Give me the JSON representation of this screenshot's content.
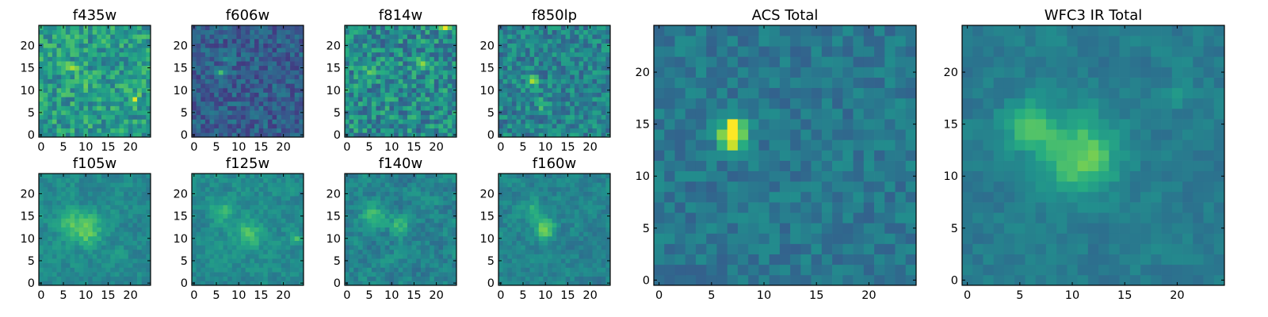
{
  "figure": {
    "background": "#ffffff",
    "colormap": "viridis",
    "colormap_stops": [
      "#440154",
      "#472c7a",
      "#3b518b",
      "#2c718e",
      "#21908d",
      "#27ad81",
      "#5cc863",
      "#aadc32",
      "#fde725"
    ]
  },
  "chart_data": [
    {
      "type": "heatmap",
      "title": "f435w",
      "grid_size": 25,
      "xlim": [
        -0.5,
        24.5
      ],
      "ylim": [
        -0.5,
        24.5
      ],
      "x_ticks": [
        0,
        5,
        10,
        15,
        20
      ],
      "y_ticks": [
        0,
        5,
        10,
        15,
        20
      ],
      "value_range": [
        0,
        1
      ],
      "base_level": 0.55,
      "noise": 0.18,
      "smooth": 0,
      "blobs": [
        [
          10,
          12,
          1,
          0.25
        ],
        [
          7,
          15,
          1,
          0.3
        ],
        [
          21,
          8,
          1,
          0.25
        ]
      ],
      "seed": 11
    },
    {
      "type": "heatmap",
      "title": "f606w",
      "grid_size": 25,
      "xlim": [
        -0.5,
        24.5
      ],
      "ylim": [
        -0.5,
        24.5
      ],
      "x_ticks": [
        0,
        5,
        10,
        15,
        20
      ],
      "y_ticks": [
        0,
        5,
        10,
        15,
        20
      ],
      "value_range": [
        0,
        1
      ],
      "base_level": 0.3,
      "noise": 0.13,
      "smooth": 0,
      "blobs": [
        [
          6,
          14,
          1,
          0.45
        ],
        [
          8,
          17,
          1,
          0.25
        ]
      ],
      "seed": 23
    },
    {
      "type": "heatmap",
      "title": "f814w",
      "grid_size": 25,
      "xlim": [
        -0.5,
        24.5
      ],
      "ylim": [
        -0.5,
        24.5
      ],
      "x_ticks": [
        0,
        5,
        10,
        15,
        20
      ],
      "y_ticks": [
        0,
        5,
        10,
        15,
        20
      ],
      "value_range": [
        0,
        1
      ],
      "base_level": 0.48,
      "noise": 0.2,
      "smooth": 0,
      "blobs": [
        [
          5,
          14,
          1,
          0.35
        ],
        [
          17,
          16,
          1,
          0.3
        ],
        [
          22,
          24,
          1,
          0.3
        ]
      ],
      "seed": 37
    },
    {
      "type": "heatmap",
      "title": "f850lp",
      "grid_size": 25,
      "xlim": [
        -0.5,
        24.5
      ],
      "ylim": [
        -0.5,
        24.5
      ],
      "x_ticks": [
        0,
        5,
        10,
        15,
        20
      ],
      "y_ticks": [
        0,
        5,
        10,
        15,
        20
      ],
      "value_range": [
        0,
        1
      ],
      "base_level": 0.45,
      "noise": 0.16,
      "smooth": 0,
      "blobs": [
        [
          7,
          12,
          1,
          0.4
        ],
        [
          9,
          7,
          1,
          0.25
        ]
      ],
      "seed": 41
    },
    {
      "type": "heatmap",
      "title": "f105w",
      "grid_size": 25,
      "xlim": [
        -0.5,
        24.5
      ],
      "ylim": [
        -0.5,
        24.5
      ],
      "x_ticks": [
        0,
        5,
        10,
        15,
        20
      ],
      "y_ticks": [
        0,
        5,
        10,
        15,
        20
      ],
      "value_range": [
        0,
        1
      ],
      "base_level": 0.48,
      "noise": 0.12,
      "smooth": 1,
      "blobs": [
        [
          10,
          12,
          3,
          0.3
        ],
        [
          6,
          14,
          2,
          0.18
        ]
      ],
      "seed": 53
    },
    {
      "type": "heatmap",
      "title": "f125w",
      "grid_size": 25,
      "xlim": [
        -0.5,
        24.5
      ],
      "ylim": [
        -0.5,
        24.5
      ],
      "x_ticks": [
        0,
        5,
        10,
        15,
        20
      ],
      "y_ticks": [
        0,
        5,
        10,
        15,
        20
      ],
      "value_range": [
        0,
        1
      ],
      "base_level": 0.48,
      "noise": 0.12,
      "smooth": 1,
      "blobs": [
        [
          6,
          16,
          2,
          0.25
        ],
        [
          12,
          11,
          3,
          0.2
        ],
        [
          23,
          10,
          1,
          0.2
        ]
      ],
      "seed": 67
    },
    {
      "type": "heatmap",
      "title": "f140w",
      "grid_size": 25,
      "xlim": [
        -0.5,
        24.5
      ],
      "ylim": [
        -0.5,
        24.5
      ],
      "x_ticks": [
        0,
        5,
        10,
        15,
        20
      ],
      "y_ticks": [
        0,
        5,
        10,
        15,
        20
      ],
      "value_range": [
        0,
        1
      ],
      "base_level": 0.45,
      "noise": 0.15,
      "smooth": 1,
      "blobs": [
        [
          6,
          15,
          2,
          0.25
        ],
        [
          12,
          13,
          2,
          0.2
        ]
      ],
      "seed": 71
    },
    {
      "type": "heatmap",
      "title": "f160w",
      "grid_size": 25,
      "xlim": [
        -0.5,
        24.5
      ],
      "ylim": [
        -0.5,
        24.5
      ],
      "x_ticks": [
        0,
        5,
        10,
        15,
        20
      ],
      "y_ticks": [
        0,
        5,
        10,
        15,
        20
      ],
      "value_range": [
        0,
        1
      ],
      "base_level": 0.45,
      "noise": 0.12,
      "smooth": 1,
      "blobs": [
        [
          10,
          12,
          2,
          0.35
        ],
        [
          7,
          16,
          2,
          0.2
        ]
      ],
      "seed": 83
    },
    {
      "type": "heatmap",
      "title": "ACS Total",
      "grid_size": 25,
      "xlim": [
        -0.5,
        24.5
      ],
      "ylim": [
        -0.5,
        24.5
      ],
      "x_ticks": [
        0,
        5,
        10,
        15,
        20
      ],
      "y_ticks": [
        0,
        5,
        10,
        15,
        20
      ],
      "value_range": [
        0,
        1
      ],
      "base_level": 0.4,
      "noise": 0.09,
      "smooth": 0,
      "blobs": [
        [
          7,
          14,
          1,
          0.5
        ],
        [
          7,
          15,
          1,
          0.3
        ],
        [
          7,
          13,
          1,
          0.25
        ]
      ],
      "seed": 97
    },
    {
      "type": "heatmap",
      "title": "WFC3 IR Total",
      "grid_size": 25,
      "xlim": [
        -0.5,
        24.5
      ],
      "ylim": [
        -0.5,
        24.5
      ],
      "x_ticks": [
        0,
        5,
        10,
        15,
        20
      ],
      "y_ticks": [
        0,
        5,
        10,
        15,
        20
      ],
      "value_range": [
        0,
        1
      ],
      "base_level": 0.42,
      "noise": 0.09,
      "smooth": 1,
      "blobs": [
        [
          11,
          12,
          3,
          0.38
        ],
        [
          6,
          15,
          2,
          0.32
        ],
        [
          20,
          18,
          1,
          0.15
        ]
      ],
      "seed": 101
    }
  ]
}
